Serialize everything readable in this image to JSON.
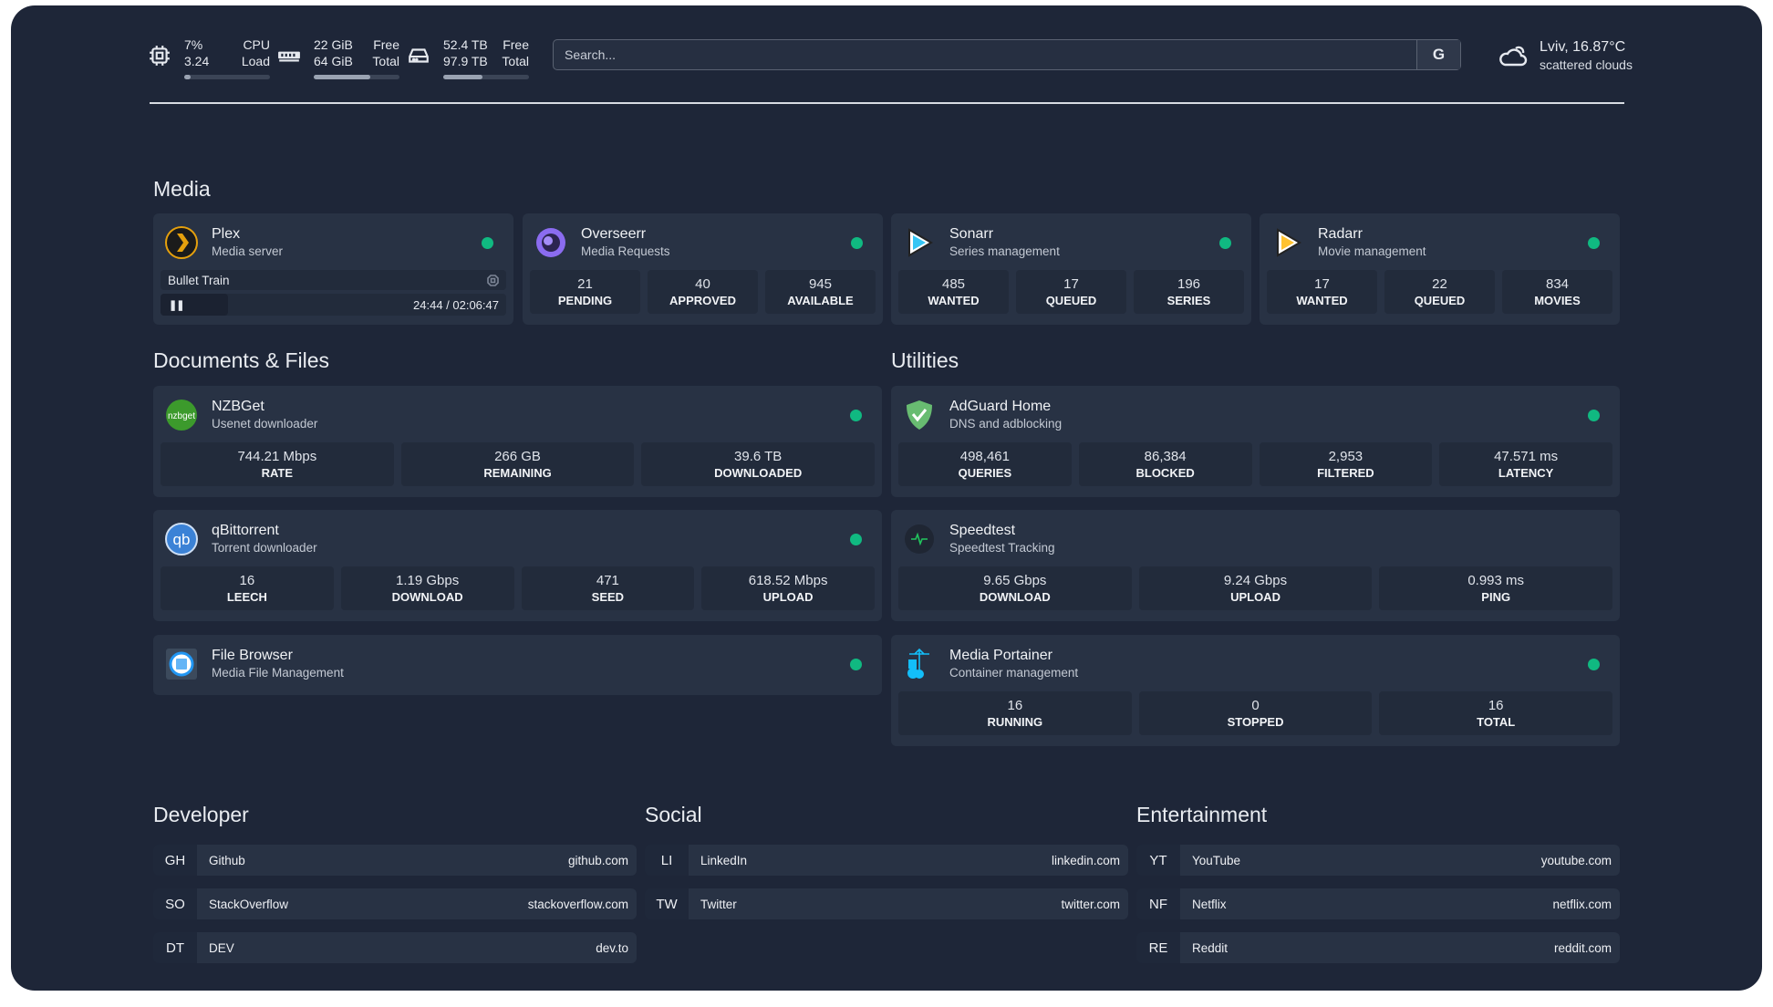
{
  "colors": {
    "background": "#1e2638",
    "card": "#283244",
    "stat": "#222b3b",
    "status_online": "#10b981"
  },
  "topbar": {
    "cpu": {
      "icon": "cpu-icon",
      "value1": "7%",
      "label1": "CPU",
      "value2": "3.24",
      "label2": "Load",
      "usage_percent": 7
    },
    "memory": {
      "icon": "memory-icon",
      "value1": "22 GiB",
      "label1": "Free",
      "value2": "64 GiB",
      "label2": "Total",
      "usage_percent": 66
    },
    "disk": {
      "icon": "disk-icon",
      "value1": "52.4 TB",
      "label1": "Free",
      "value2": "97.9 TB",
      "label2": "Total",
      "usage_percent": 46
    },
    "search": {
      "placeholder": "Search...",
      "button_label": "G"
    },
    "weather": {
      "icon": "cloud-icon",
      "location_temp": "Lviv, 16.87°C",
      "condition": "scattered clouds"
    }
  },
  "sections": {
    "media": "Media",
    "documents": "Documents & Files",
    "utilities": "Utilities",
    "developer": "Developer",
    "social": "Social",
    "entertainment": "Entertainment"
  },
  "services": {
    "plex": {
      "name": "Plex",
      "desc": "Media server",
      "icon": "plex-icon",
      "status": "online",
      "now_playing": {
        "title": "Bullet Train",
        "time": "24:44 / 02:06:47",
        "progress_percent": 19.5
      }
    },
    "overseerr": {
      "name": "Overseerr",
      "desc": "Media Requests",
      "icon": "overseerr-icon",
      "status": "online",
      "stats": [
        {
          "value": "21",
          "label": "PENDING"
        },
        {
          "value": "40",
          "label": "APPROVED"
        },
        {
          "value": "945",
          "label": "AVAILABLE"
        }
      ]
    },
    "sonarr": {
      "name": "Sonarr",
      "desc": "Series management",
      "icon": "sonarr-icon",
      "status": "online",
      "stats": [
        {
          "value": "485",
          "label": "WANTED"
        },
        {
          "value": "17",
          "label": "QUEUED"
        },
        {
          "value": "196",
          "label": "SERIES"
        }
      ]
    },
    "radarr": {
      "name": "Radarr",
      "desc": "Movie management",
      "icon": "radarr-icon",
      "status": "online",
      "stats": [
        {
          "value": "17",
          "label": "WANTED"
        },
        {
          "value": "22",
          "label": "QUEUED"
        },
        {
          "value": "834",
          "label": "MOVIES"
        }
      ]
    },
    "nzbget": {
      "name": "NZBGet",
      "desc": "Usenet downloader",
      "icon": "nzbget-icon",
      "icon_text": "nzbget",
      "status": "online",
      "stats": [
        {
          "value": "744.21 Mbps",
          "label": "RATE"
        },
        {
          "value": "266 GB",
          "label": "REMAINING"
        },
        {
          "value": "39.6 TB",
          "label": "DOWNLOADED"
        }
      ]
    },
    "qbittorrent": {
      "name": "qBittorrent",
      "desc": "Torrent downloader",
      "icon": "qbittorrent-icon",
      "icon_text": "qb",
      "status": "online",
      "stats": [
        {
          "value": "16",
          "label": "LEECH"
        },
        {
          "value": "1.19 Gbps",
          "label": "DOWNLOAD"
        },
        {
          "value": "471",
          "label": "SEED"
        },
        {
          "value": "618.52 Mbps",
          "label": "UPLOAD"
        }
      ]
    },
    "filebrowser": {
      "name": "File Browser",
      "desc": "Media File Management",
      "icon": "file-browser-icon",
      "status": "online"
    },
    "adguard": {
      "name": "AdGuard Home",
      "desc": "DNS and adblocking",
      "icon": "adguard-icon",
      "status": "online",
      "stats": [
        {
          "value": "498,461",
          "label": "QUERIES"
        },
        {
          "value": "86,384",
          "label": "BLOCKED"
        },
        {
          "value": "2,953",
          "label": "FILTERED"
        },
        {
          "value": "47.571 ms",
          "label": "LATENCY"
        }
      ]
    },
    "speedtest": {
      "name": "Speedtest",
      "desc": "Speedtest Tracking",
      "icon": "speedtest-icon",
      "stats": [
        {
          "value": "9.65 Gbps",
          "label": "DOWNLOAD"
        },
        {
          "value": "9.24 Gbps",
          "label": "UPLOAD"
        },
        {
          "value": "0.993 ms",
          "label": "PING"
        }
      ]
    },
    "portainer": {
      "name": "Media Portainer",
      "desc": "Container management",
      "icon": "portainer-icon",
      "status": "online",
      "stats": [
        {
          "value": "16",
          "label": "RUNNING"
        },
        {
          "value": "0",
          "label": "STOPPED"
        },
        {
          "value": "16",
          "label": "TOTAL"
        }
      ]
    }
  },
  "bookmarks": {
    "developer": [
      {
        "abbr": "GH",
        "name": "Github",
        "href": "github.com"
      },
      {
        "abbr": "SO",
        "name": "StackOverflow",
        "href": "stackoverflow.com"
      },
      {
        "abbr": "DT",
        "name": "DEV",
        "href": "dev.to"
      }
    ],
    "social": [
      {
        "abbr": "LI",
        "name": "LinkedIn",
        "href": "linkedin.com"
      },
      {
        "abbr": "TW",
        "name": "Twitter",
        "href": "twitter.com"
      }
    ],
    "entertainment": [
      {
        "abbr": "YT",
        "name": "YouTube",
        "href": "youtube.com"
      },
      {
        "abbr": "NF",
        "name": "Netflix",
        "href": "netflix.com"
      },
      {
        "abbr": "RE",
        "name": "Reddit",
        "href": "reddit.com"
      }
    ]
  }
}
